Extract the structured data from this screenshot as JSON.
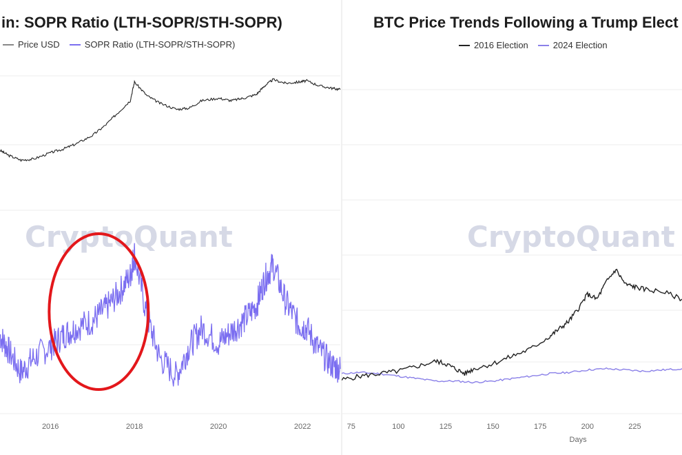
{
  "colors": {
    "price": "#222222",
    "sopr": "#7b6ef0",
    "highlight": "#e3171b",
    "grid": "#eeeeee",
    "watermark": "#d6d9e6"
  },
  "watermark_text": "CryptoQuant",
  "chart_data": [
    {
      "type": "line",
      "title": "in: SOPR Ratio (LTH-SOPR/STH-SOPR)",
      "legend": [
        "Price USD",
        "SOPR Ratio (LTH-SOPR/STH-SOPR)"
      ],
      "xlim": [
        2014.8,
        2022.9
      ],
      "x_ticks": [
        "2016",
        "2018",
        "2020",
        "2022"
      ],
      "x_tick_values": [
        2016,
        2018,
        2020,
        2022
      ],
      "series": [
        {
          "name": "Price USD",
          "x": [
            2014.8,
            2015.0,
            2015.3,
            2015.6,
            2016.0,
            2016.3,
            2016.6,
            2017.0,
            2017.3,
            2017.6,
            2017.9,
            2018.0,
            2018.3,
            2018.6,
            2019.0,
            2019.3,
            2019.6,
            2020.0,
            2020.3,
            2020.6,
            2020.9,
            2021.1,
            2021.3,
            2021.6,
            2021.9,
            2022.1,
            2022.4,
            2022.7,
            2022.9
          ],
          "values": [
            0.4,
            0.36,
            0.32,
            0.33,
            0.38,
            0.41,
            0.45,
            0.52,
            0.6,
            0.7,
            0.8,
            0.95,
            0.84,
            0.78,
            0.73,
            0.74,
            0.8,
            0.82,
            0.8,
            0.82,
            0.85,
            0.92,
            0.97,
            0.94,
            0.95,
            0.96,
            0.92,
            0.9,
            0.89
          ]
        },
        {
          "name": "SOPR Ratio (LTH-SOPR/STH-SOPR)",
          "x": [
            2014.8,
            2015.0,
            2015.3,
            2015.6,
            2016.0,
            2016.3,
            2016.6,
            2017.0,
            2017.3,
            2017.6,
            2017.9,
            2018.0,
            2018.3,
            2018.6,
            2019.0,
            2019.3,
            2019.6,
            2020.0,
            2020.3,
            2020.6,
            2020.9,
            2021.1,
            2021.3,
            2021.6,
            2021.9,
            2022.1,
            2022.4,
            2022.7,
            2022.9
          ],
          "values": [
            0.42,
            0.34,
            0.22,
            0.3,
            0.36,
            0.42,
            0.46,
            0.5,
            0.56,
            0.64,
            0.74,
            0.86,
            0.52,
            0.3,
            0.2,
            0.36,
            0.46,
            0.38,
            0.44,
            0.5,
            0.58,
            0.72,
            0.8,
            0.6,
            0.48,
            0.46,
            0.34,
            0.26,
            0.24
          ]
        }
      ],
      "annotation": "red ellipse highlighting the 2016–2018 SOPR ratio uptrend"
    },
    {
      "type": "line",
      "title": "BTC Price Trends Following a Trump Elect",
      "legend": [
        "2016 Election",
        "2024 Election"
      ],
      "xlabel": "Days",
      "xlim": [
        70,
        250
      ],
      "x_ticks": [
        "75",
        "100",
        "125",
        "150",
        "175",
        "200",
        "225"
      ],
      "x_tick_values": [
        75,
        100,
        125,
        150,
        175,
        200,
        225
      ],
      "series": [
        {
          "name": "2016 Election",
          "x": [
            70,
            80,
            90,
            100,
            110,
            120,
            125,
            130,
            135,
            140,
            150,
            160,
            170,
            180,
            185,
            190,
            195,
            200,
            205,
            210,
            215,
            220,
            225,
            230,
            240,
            250
          ],
          "values": [
            0.05,
            0.08,
            0.1,
            0.12,
            0.16,
            0.2,
            0.18,
            0.14,
            0.1,
            0.14,
            0.18,
            0.24,
            0.3,
            0.4,
            0.46,
            0.52,
            0.62,
            0.74,
            0.7,
            0.84,
            0.94,
            0.82,
            0.8,
            0.78,
            0.76,
            0.7
          ]
        },
        {
          "name": "2024 Election",
          "x": [
            70,
            80,
            90,
            100,
            110,
            120,
            130,
            140,
            150,
            160,
            170,
            180,
            190,
            200,
            210,
            220,
            230,
            240,
            250
          ],
          "values": [
            0.1,
            0.11,
            0.1,
            0.08,
            0.06,
            0.04,
            0.04,
            0.03,
            0.04,
            0.06,
            0.08,
            0.1,
            0.11,
            0.13,
            0.14,
            0.13,
            0.12,
            0.13,
            0.14
          ]
        }
      ]
    }
  ]
}
